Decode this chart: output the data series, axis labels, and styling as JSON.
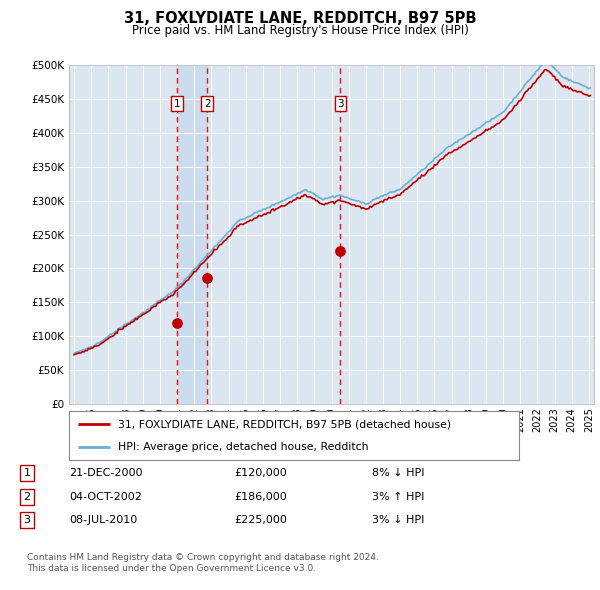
{
  "title": "31, FOXLYDIATE LANE, REDDITCH, B97 5PB",
  "subtitle": "Price paid vs. HM Land Registry's House Price Index (HPI)",
  "legend_line1": "31, FOXLYDIATE LANE, REDDITCH, B97 5PB (detached house)",
  "legend_line2": "HPI: Average price, detached house, Redditch",
  "footer1": "Contains HM Land Registry data © Crown copyright and database right 2024.",
  "footer2": "This data is licensed under the Open Government Licence v3.0.",
  "transactions": [
    {
      "num": 1,
      "date": "21-DEC-2000",
      "price": 120000,
      "pct": "8%",
      "dir": "↓",
      "x_year": 2001.0
    },
    {
      "num": 2,
      "date": "04-OCT-2002",
      "price": 186000,
      "pct": "3%",
      "dir": "↑",
      "x_year": 2002.75
    },
    {
      "num": 3,
      "date": "08-JUL-2010",
      "price": 225000,
      "pct": "3%",
      "dir": "↓",
      "x_year": 2010.52
    }
  ],
  "hpi_color": "#6aaed6",
  "price_color": "#c00000",
  "vline_color": "#ee1111",
  "box_color": "#c00000",
  "bg_color": "#dce6f1",
  "shade_color": "#c5d8ee",
  "grid_color": "#ffffff",
  "ylim": [
    0,
    500000
  ],
  "yticks": [
    0,
    50000,
    100000,
    150000,
    200000,
    250000,
    300000,
    350000,
    400000,
    450000,
    500000
  ],
  "xlim_start": 1994.7,
  "xlim_end": 2025.3
}
